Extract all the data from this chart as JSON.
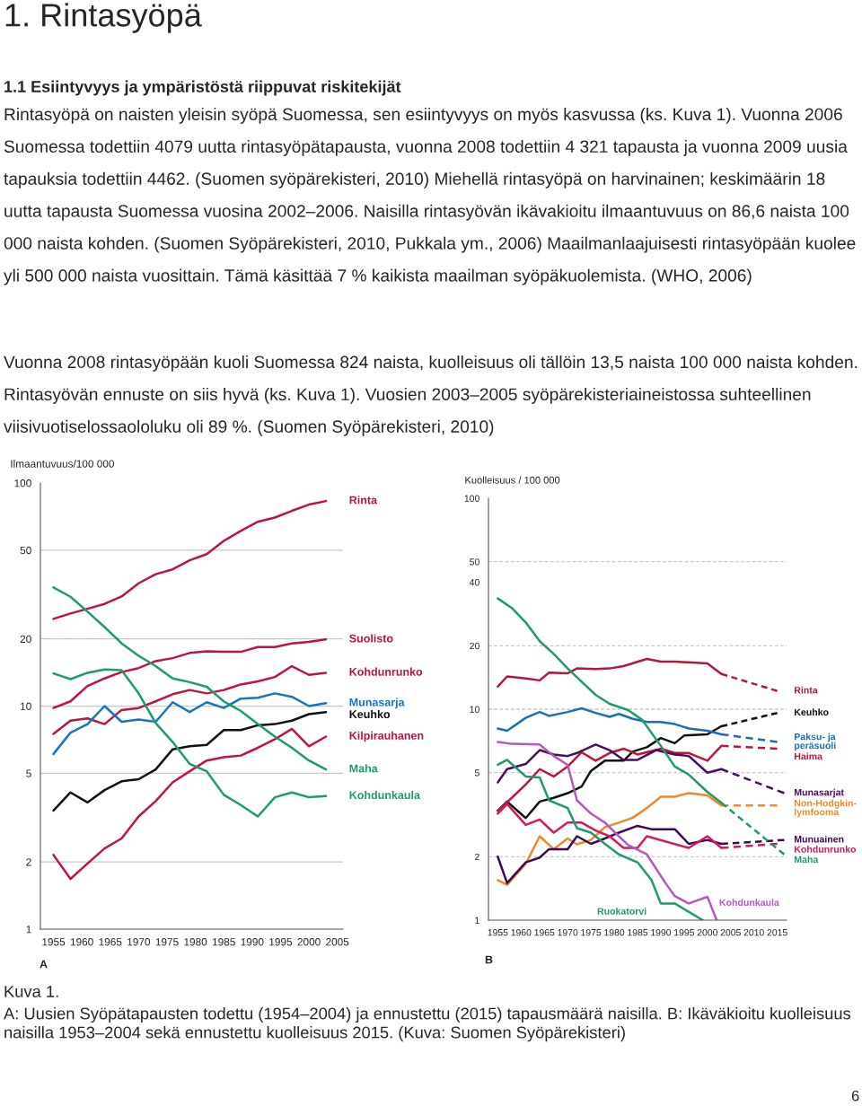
{
  "chart_data": [
    {
      "type": "line",
      "title": "1. Rintasyöpä",
      "subtitle": "1.1 Esiintyvyys ja ympäristöstä riippuvat riskitekijät",
      "ylabel": "Ilmaantuvuus/100 000",
      "annotations": [
        "Rintasyöpä on naisten yleisin syöpä Suomessa, sen esiintyvyys on myös kasvussa (ks. Kuva 1). Vuonna 2006 Suomessa todettiin 4079 uutta rintasyöpätapausta, vuonna 2008 todettiin 4 321 tapausta ja vuonna 2009 uusia tapauksia todettiin 4462. (Suomen syöpärekisteri, 2010) Miehellä rintasyöpä on harvinainen; keskimäärin 18 uutta tapausta Suomessa vuosina 2002–2006. Naisilla rintasyövän ikävakioitu ilmaantuvuus on 86,6 naista 100 000 naista kohden. (Suomen Syöpärekisteri, 2010, Pukkala ym., 2006) Maailmanlaajuisesti rintasyöpään kuolee yli 500 000 naista vuosittain. Tämä käsittää 7 % kaikista maailman syöpäkuolemista. (WHO, 2006)",
        "Vuonna 2008 rintasyöpään kuoli Suomessa 824 naista, kuolleisuus oli tällöin 13,5 naista 100 000 naista kohden. Rintasyövän ennuste on siis hyvä (ks. Kuva 1). Vuosien 2003–2005 syöpärekisteriaineistossa suhteellinen viisivuotiselossaololuku oli 89 %. (Suomen Syöpärekisteri, 2010)",
        "A"
      ],
      "x": [
        1955,
        1958,
        1961,
        1964,
        1967,
        1970,
        1973,
        1976,
        1979,
        1982,
        1985,
        1988,
        1991,
        1994,
        1997,
        2000,
        2003
      ],
      "xlim": [
        1952.7,
        2006
      ],
      "xticks": [
        1955,
        1960,
        1965,
        1970,
        1975,
        1980,
        1985,
        1990,
        1995,
        2000,
        2005
      ],
      "log": "y",
      "ylim": [
        1,
        100
      ],
      "yticks": [
        1,
        2,
        5,
        10,
        20,
        50,
        100
      ],
      "ref_lines": [
        {
          "axis": "y",
          "value": 2,
          "color": "#c8c8c8",
          "line_style": "solid"
        },
        {
          "axis": "y",
          "value": 5,
          "color": "#c8c8c8",
          "line_style": "solid"
        },
        {
          "axis": "y",
          "value": 10,
          "color": "#c8c8c8",
          "line_style": "solid"
        },
        {
          "axis": "y",
          "value": 20,
          "color": "#c8c8c8",
          "line_style": "solid"
        },
        {
          "axis": "y",
          "value": 50,
          "color": "#c8c8c8",
          "line_style": "solid"
        }
      ],
      "series": [
        {
          "name": "Rinta",
          "color": "#c0143c",
          "values": [
            24.6,
            26,
            27.3,
            28.7,
            31,
            35.5,
            39,
            41,
            45,
            48,
            55,
            61,
            67,
            70,
            75,
            80,
            83
          ]
        },
        {
          "name": "Suolisto",
          "color": "#c0143c",
          "values": [
            9.8,
            10.5,
            12.3,
            13.3,
            14.2,
            14.8,
            15.9,
            16.4,
            17.3,
            17.6,
            17.5,
            17.5,
            18.4,
            18.4,
            19.1,
            19.4,
            19.9
          ]
        },
        {
          "name": "Kohdunrunko",
          "color": "#c0143c",
          "values": [
            7.5,
            8.6,
            8.8,
            8.3,
            9.6,
            9.8,
            10.5,
            11.3,
            11.8,
            11.4,
            11.8,
            12.5,
            12.9,
            13.5,
            15.1,
            13.8,
            14.1
          ]
        },
        {
          "name": "Munasarja",
          "color": "#1a72c4",
          "values": [
            6.1,
            7.6,
            8.3,
            10,
            8.5,
            8.7,
            8.5,
            10.4,
            9.4,
            10.4,
            9.8,
            10.8,
            10.9,
            11.4,
            11.0,
            10,
            10.3
          ]
        },
        {
          "name": "Keuhko",
          "color": "#111111",
          "values": [
            3.4,
            4.1,
            3.7,
            4.2,
            4.6,
            4.7,
            5.2,
            6.4,
            6.6,
            6.7,
            7.8,
            7.8,
            8.2,
            8.3,
            8.6,
            9.2,
            9.4
          ]
        },
        {
          "name": "Kilpirauhanen",
          "color": "#c0143c",
          "values": [
            2.15,
            1.68,
            1.97,
            2.3,
            2.55,
            3.2,
            3.75,
            4.55,
            5.1,
            5.7,
            5.9,
            6.0,
            6.5,
            7.1,
            7.9,
            6.6,
            7.3
          ]
        },
        {
          "name": "Maha",
          "color": "#1f9a6e",
          "values": [
            34,
            30.9,
            26.5,
            22.6,
            19.1,
            16.8,
            15.1,
            13.3,
            12.8,
            12.2,
            10.5,
            9.5,
            8.3,
            7.3,
            6.5,
            5.7,
            5.2
          ]
        },
        {
          "name": "Kohdunkaula",
          "color": "#1f9a6e",
          "values": [
            14,
            13.2,
            14.1,
            14.6,
            14.5,
            11.4,
            8.4,
            6.9,
            5.5,
            5.1,
            4.0,
            3.6,
            3.2,
            3.9,
            4.1,
            3.9,
            3.95
          ]
        }
      ]
    },
    {
      "type": "line",
      "ylabel": "Kuolleisuus / 100 000",
      "annotations": [
        "B",
        "Kuva 1.",
        "A: Uusien Syöpätapausten todettu (1954–2004) ja ennustettu (2015) tapausmäärä naisilla. B: Ikäväkioitu kuolleisuus naisilla 1953–2004 sekä ennustettu kuolleisuus 2015. (Kuva: Suomen Syöpärekisteri)",
        "6"
      ],
      "xlim": [
        1953,
        2017
      ],
      "xticks": [
        1955,
        1960,
        1965,
        1970,
        1975,
        1980,
        1985,
        1990,
        1995,
        2000,
        2005,
        2010,
        2015
      ],
      "log": "y",
      "ylim": [
        1,
        100
      ],
      "yticks": [
        1,
        2,
        5,
        10,
        20,
        40,
        50,
        100
      ],
      "ref_lines": [
        {
          "axis": "y",
          "value": 2,
          "color": "#c8c8c8",
          "line_style": "dashed"
        },
        {
          "axis": "y",
          "value": 5,
          "color": "#c8c8c8",
          "line_style": "dashed"
        },
        {
          "axis": "y",
          "value": 10,
          "color": "#c8c8c8",
          "line_style": "dashed"
        },
        {
          "axis": "y",
          "value": 20,
          "color": "#c8c8c8",
          "line_style": "dashed"
        },
        {
          "axis": "y",
          "value": 50,
          "color": "#c8c8c8",
          "line_style": "dashed"
        }
      ],
      "series": [
        {
          "name": "Rinta",
          "color": "#b5173c",
          "x": [
            1955,
            1957,
            1961,
            1964,
            1966,
            1970,
            1972,
            1976,
            1979,
            1982,
            1987,
            1990,
            1993,
            2000,
            2003
          ],
          "values": [
            12.8,
            14.3,
            14,
            13.7,
            14.9,
            14.8,
            15.6,
            15.5,
            15.6,
            16,
            17.3,
            16.8,
            16.8,
            16.5,
            14.7
          ]
        },
        {
          "color": "#b5173c",
          "line_style": "dashed",
          "x": [
            2003,
            2015
          ],
          "values": [
            14.7,
            12.2
          ]
        },
        {
          "name": "Keuhko",
          "color": "#111111",
          "x": [
            1955,
            1957,
            1961,
            1964,
            1967,
            1970,
            1973,
            1975,
            1978,
            1982,
            1984,
            1987,
            1990,
            1993,
            1995,
            2000,
            2003
          ],
          "values": [
            3.3,
            3.65,
            3.05,
            3.65,
            3.8,
            4.0,
            4.3,
            5.1,
            5.7,
            5.7,
            6.3,
            6.6,
            7.3,
            6.9,
            7.5,
            7.6,
            8.3
          ]
        },
        {
          "color": "#111111",
          "line_style": "dashed",
          "x": [
            2003,
            2015
          ],
          "values": [
            8.3,
            9.6
          ]
        },
        {
          "name": "Paksu- ja\nperäsuoli",
          "color": "#1a6fb8",
          "x": [
            1955,
            1957,
            1961,
            1964,
            1966,
            1970,
            1973,
            1976,
            1979,
            1981,
            1984,
            1987,
            1990,
            1993,
            1996,
            2000,
            2003
          ],
          "values": [
            8.1,
            7.9,
            9.1,
            9.7,
            9.3,
            9.7,
            10.1,
            9.6,
            9.2,
            9.5,
            9.0,
            8.7,
            8.7,
            8.5,
            8.1,
            7.9,
            7.6
          ]
        },
        {
          "color": "#1a6fb8",
          "line_style": "dashed",
          "x": [
            2003,
            2015
          ],
          "values": [
            7.6,
            7.0
          ]
        },
        {
          "name": "Haima",
          "color": "#c0143c",
          "x": [
            1955,
            1958,
            1961,
            1964,
            1967,
            1970,
            1973,
            1976,
            1979,
            1982,
            1985,
            1990,
            1993,
            1996,
            2000,
            2003
          ],
          "values": [
            3.3,
            3.8,
            4.4,
            5.2,
            4.8,
            5.35,
            6.25,
            5.7,
            6.2,
            6.5,
            6.1,
            6.5,
            6.2,
            6.2,
            5.7,
            6.7
          ]
        },
        {
          "color": "#c0143c",
          "line_style": "dashed",
          "x": [
            2003,
            2015
          ],
          "values": [
            6.7,
            6.5
          ]
        },
        {
          "name": "Munasarjat",
          "color": "#4a0f5c",
          "x": [
            1955,
            1957,
            1961,
            1964,
            1967,
            1970,
            1972,
            1976,
            1979,
            1982,
            1985,
            1989,
            1993,
            1996,
            2000,
            2003
          ],
          "values": [
            4.5,
            5.2,
            5.5,
            6.4,
            6.1,
            6.0,
            6.2,
            6.8,
            6.4,
            5.75,
            5.75,
            6.4,
            6.1,
            6.0,
            5.0,
            5.2
          ]
        },
        {
          "color": "#4a0f5c",
          "line_style": "dashed",
          "x": [
            2003,
            2016.5
          ],
          "values": [
            5.2,
            4.0
          ]
        },
        {
          "name": "Non-Hodgkin-\nlymfooma",
          "color": "#f0882a",
          "x": [
            1955,
            1957,
            1961,
            1964,
            1967,
            1970,
            1972,
            1975,
            1978,
            1981,
            1984,
            1987,
            1990,
            1993,
            1996,
            2000,
            2003
          ],
          "values": [
            1.55,
            1.47,
            1.85,
            2.5,
            2.17,
            2.44,
            2.29,
            2.4,
            2.76,
            2.9,
            3.06,
            3.4,
            3.85,
            3.85,
            4.0,
            3.9,
            3.5
          ]
        },
        {
          "color": "#f0882a",
          "line_style": "dashed",
          "x": [
            2003,
            2015
          ],
          "values": [
            3.5,
            3.5
          ]
        },
        {
          "name": "Munuainen",
          "color": "#3d0a52",
          "x": [
            1955,
            1957,
            1961,
            1964,
            1966,
            1970,
            1972,
            1975,
            1978,
            1981,
            1985,
            1988,
            1993,
            1996,
            2000,
            2003
          ],
          "values": [
            2.0,
            1.5,
            1.88,
            1.98,
            2.17,
            2.17,
            2.5,
            2.3,
            2.44,
            2.6,
            2.8,
            2.7,
            2.7,
            2.3,
            2.4,
            2.3
          ]
        },
        {
          "color": "#3d0a52",
          "line_style": "dashed",
          "x": [
            2003,
            2016.5
          ],
          "values": [
            2.3,
            2.4
          ]
        },
        {
          "name": "Kohdunrunko",
          "color": "#d6185f",
          "x": [
            1955,
            1957,
            1961,
            1964,
            1967,
            1970,
            1973,
            1976,
            1979,
            1982,
            1985,
            1987,
            1996,
            2000,
            2003
          ],
          "values": [
            3.2,
            3.55,
            2.83,
            3.0,
            2.6,
            2.9,
            2.9,
            2.66,
            2.5,
            2.2,
            2.2,
            2.5,
            2.2,
            2.5,
            2.2
          ]
        },
        {
          "color": "#d6185f",
          "line_style": "dashed",
          "x": [
            2003,
            2015
          ],
          "values": [
            2.2,
            2.3
          ]
        },
        {
          "color": "#1f9a6e",
          "x": [
            1955,
            1958,
            1961,
            1964,
            1967,
            1970,
            1973,
            1976,
            1979,
            1983,
            1986,
            1990,
            1993,
            1996,
            2000,
            2003
          ],
          "values": [
            33.5,
            30.2,
            25.8,
            21,
            18.3,
            15.6,
            13.5,
            11.7,
            10.6,
            9.9,
            8.9,
            6.7,
            5.35,
            4.9,
            4.05,
            3.6
          ]
        },
        {
          "name": "Maha",
          "color": "#1f9a6e",
          "line_style": "dashed",
          "x": [
            2003,
            2016.5
          ],
          "values": [
            3.6,
            2.05
          ]
        },
        {
          "name": "Ruokatorvi",
          "color": "#1f9a6e",
          "x": [
            1955,
            1957,
            1961,
            1964,
            1966,
            1970,
            1972,
            1975,
            1978,
            1981,
            1985,
            1988,
            1990,
            1993,
            1999
          ],
          "values": [
            5.45,
            5.75,
            4.8,
            4.75,
            3.7,
            3.4,
            2.73,
            2.6,
            2.3,
            2.05,
            1.88,
            1.55,
            1.2,
            1.2,
            1.0
          ]
        },
        {
          "name": "Kohdunkaula",
          "color": "#b458c0",
          "x": [
            1955,
            1958,
            1964,
            1967,
            1970,
            1972,
            1975,
            1978,
            1981,
            1983,
            1987,
            1991,
            1993,
            1996,
            2000,
            2002
          ],
          "values": [
            7.0,
            6.85,
            6.8,
            6.0,
            5.45,
            3.7,
            3.2,
            2.9,
            2.5,
            2.27,
            2.05,
            1.5,
            1.3,
            1.2,
            1.29,
            1.0
          ]
        }
      ]
    }
  ]
}
